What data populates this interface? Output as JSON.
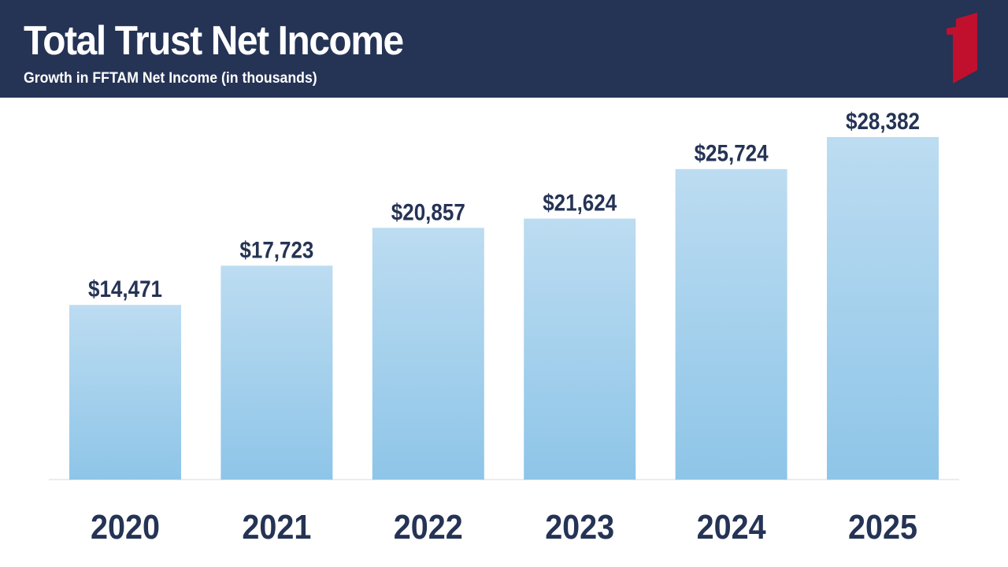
{
  "header": {
    "title": "Total Trust Net Income",
    "subtitle": "Growth in FFTAM Net Income (in thousands)",
    "background_color": "#253355",
    "logo_icon": "red-banner-icon",
    "logo_color": "#c0102e"
  },
  "chart_data": {
    "type": "bar",
    "categories": [
      "2020",
      "2021",
      "2022",
      "2023",
      "2024",
      "2025"
    ],
    "values": [
      14471,
      17723,
      20857,
      21624,
      25724,
      28382
    ],
    "data_labels": [
      "$14,471",
      "$17,723",
      "$20,857",
      "$21,624",
      "$25,724",
      "$28,382"
    ],
    "title": "",
    "xlabel": "",
    "ylabel": "",
    "ylim": [
      0,
      28382
    ],
    "grid": false,
    "legend": "none",
    "bar_color_top": "#bcdcf1",
    "bar_color_bottom": "#8ec5e8",
    "label_color": "#253355"
  }
}
